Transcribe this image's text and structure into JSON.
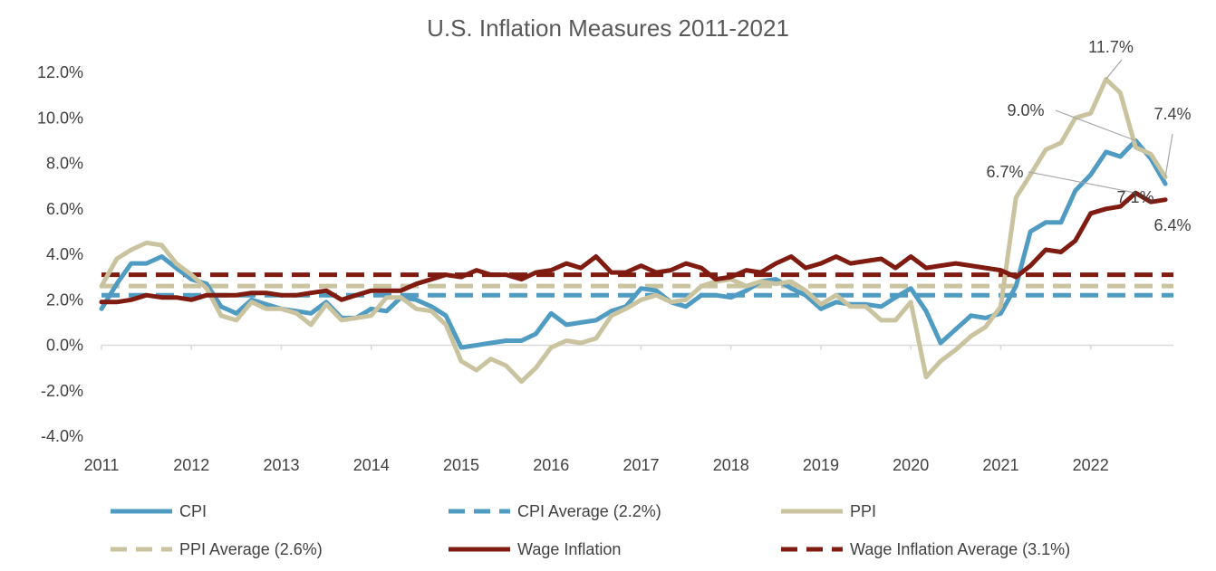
{
  "chart_data": {
    "type": "line",
    "title": "U.S. Inflation Measures 2011-2021",
    "xlabel": "",
    "ylabel": "",
    "ylim": [
      -4.0,
      12.0
    ],
    "y_ticks": [
      "-4.0%",
      "-2.0%",
      "0.0%",
      "2.0%",
      "4.0%",
      "6.0%",
      "8.0%",
      "10.0%",
      "12.0%"
    ],
    "y_tick_values": [
      -4,
      -2,
      0,
      2,
      4,
      6,
      8,
      10,
      12
    ],
    "x_ticks": [
      "2011",
      "2012",
      "2013",
      "2014",
      "2015",
      "2016",
      "2017",
      "2018",
      "2019",
      "2020",
      "2021",
      "2022"
    ],
    "x_tick_values": [
      2011,
      2012,
      2013,
      2014,
      2015,
      2016,
      2017,
      2018,
      2019,
      2020,
      2021,
      2022
    ],
    "xlim": [
      2011,
      2022.92
    ],
    "grid": false,
    "legend_position": "bottom",
    "series": [
      {
        "name": "CPI",
        "color": "#4f9bc2",
        "dash": "solid",
        "x": [
          2011.0,
          2011.17,
          2011.33,
          2011.5,
          2011.67,
          2011.83,
          2012.0,
          2012.17,
          2012.33,
          2012.5,
          2012.67,
          2012.83,
          2013.0,
          2013.17,
          2013.33,
          2013.5,
          2013.67,
          2013.83,
          2014.0,
          2014.17,
          2014.33,
          2014.5,
          2014.67,
          2014.83,
          2015.0,
          2015.17,
          2015.33,
          2015.5,
          2015.67,
          2015.83,
          2016.0,
          2016.17,
          2016.33,
          2016.5,
          2016.67,
          2016.83,
          2017.0,
          2017.17,
          2017.33,
          2017.5,
          2017.67,
          2017.83,
          2018.0,
          2018.17,
          2018.33,
          2018.5,
          2018.67,
          2018.83,
          2019.0,
          2019.17,
          2019.33,
          2019.5,
          2019.67,
          2019.83,
          2020.0,
          2020.17,
          2020.33,
          2020.5,
          2020.67,
          2020.83,
          2021.0,
          2021.17,
          2021.33,
          2021.5,
          2021.67,
          2021.83,
          2022.0,
          2022.17,
          2022.33,
          2022.5,
          2022.67,
          2022.83
        ],
        "values": [
          1.6,
          2.7,
          3.6,
          3.6,
          3.9,
          3.4,
          2.9,
          2.7,
          1.7,
          1.4,
          2.0,
          1.8,
          1.6,
          1.5,
          1.4,
          1.9,
          1.2,
          1.2,
          1.6,
          1.5,
          2.1,
          2.0,
          1.7,
          1.3,
          -0.1,
          0.0,
          0.1,
          0.2,
          0.2,
          0.5,
          1.4,
          0.9,
          1.0,
          1.1,
          1.5,
          1.7,
          2.5,
          2.4,
          1.9,
          1.7,
          2.2,
          2.2,
          2.1,
          2.4,
          2.8,
          2.9,
          2.5,
          2.2,
          1.6,
          1.9,
          1.8,
          1.8,
          1.7,
          2.1,
          2.5,
          1.5,
          0.1,
          0.7,
          1.3,
          1.2,
          1.4,
          2.6,
          5.0,
          5.4,
          5.4,
          6.8,
          7.5,
          8.5,
          8.3,
          9.0,
          8.2,
          7.1
        ]
      },
      {
        "name": "CPI Average (2.2%)",
        "color": "#4f9bc2",
        "dash": "dashed",
        "constant": 2.2
      },
      {
        "name": "PPI",
        "color": "#c9c39f",
        "dash": "solid",
        "x": [
          2011.0,
          2011.17,
          2011.33,
          2011.5,
          2011.67,
          2011.83,
          2012.0,
          2012.17,
          2012.33,
          2012.5,
          2012.67,
          2012.83,
          2013.0,
          2013.17,
          2013.33,
          2013.5,
          2013.67,
          2013.83,
          2014.0,
          2014.17,
          2014.33,
          2014.5,
          2014.67,
          2014.83,
          2015.0,
          2015.17,
          2015.33,
          2015.5,
          2015.67,
          2015.83,
          2016.0,
          2016.17,
          2016.33,
          2016.5,
          2016.67,
          2016.83,
          2017.0,
          2017.17,
          2017.33,
          2017.5,
          2017.67,
          2017.83,
          2018.0,
          2018.17,
          2018.33,
          2018.5,
          2018.67,
          2018.83,
          2019.0,
          2019.17,
          2019.33,
          2019.5,
          2019.67,
          2019.83,
          2020.0,
          2020.17,
          2020.33,
          2020.5,
          2020.67,
          2020.83,
          2021.0,
          2021.17,
          2021.33,
          2021.5,
          2021.67,
          2021.83,
          2022.0,
          2022.17,
          2022.33,
          2022.5,
          2022.67,
          2022.83
        ],
        "values": [
          2.6,
          3.8,
          4.2,
          4.5,
          4.4,
          3.6,
          3.1,
          2.5,
          1.3,
          1.1,
          1.9,
          1.6,
          1.6,
          1.4,
          0.9,
          1.8,
          1.1,
          1.2,
          1.3,
          2.1,
          2.1,
          1.6,
          1.5,
          0.9,
          -0.7,
          -1.1,
          -0.6,
          -0.9,
          -1.6,
          -1.0,
          -0.1,
          0.2,
          0.1,
          0.3,
          1.3,
          1.6,
          2.0,
          2.2,
          1.9,
          2.0,
          2.6,
          2.8,
          2.9,
          2.6,
          2.8,
          2.7,
          2.8,
          2.4,
          1.8,
          2.2,
          1.7,
          1.7,
          1.1,
          1.1,
          1.9,
          -1.4,
          -0.7,
          -0.2,
          0.4,
          0.8,
          1.7,
          6.5,
          7.5,
          8.6,
          8.9,
          10.0,
          10.2,
          11.7,
          11.1,
          8.7,
          8.4,
          7.4
        ]
      },
      {
        "name": "PPI Average (2.6%)",
        "color": "#c9c39f",
        "dash": "dashed",
        "constant": 2.6
      },
      {
        "name": "Wage Inflation",
        "color": "#7f1b10",
        "dash": "solid",
        "x": [
          2011.0,
          2011.17,
          2011.33,
          2011.5,
          2011.67,
          2011.83,
          2012.0,
          2012.17,
          2012.33,
          2012.5,
          2012.67,
          2012.83,
          2013.0,
          2013.17,
          2013.33,
          2013.5,
          2013.67,
          2013.83,
          2014.0,
          2014.17,
          2014.33,
          2014.5,
          2014.67,
          2014.83,
          2015.0,
          2015.17,
          2015.33,
          2015.5,
          2015.67,
          2015.83,
          2016.0,
          2016.17,
          2016.33,
          2016.5,
          2016.67,
          2016.83,
          2017.0,
          2017.17,
          2017.33,
          2017.5,
          2017.67,
          2017.83,
          2018.0,
          2018.17,
          2018.33,
          2018.5,
          2018.67,
          2018.83,
          2019.0,
          2019.17,
          2019.33,
          2019.5,
          2019.67,
          2019.83,
          2020.0,
          2020.17,
          2020.33,
          2020.5,
          2020.67,
          2020.83,
          2021.0,
          2021.17,
          2021.33,
          2021.5,
          2021.67,
          2021.83,
          2022.0,
          2022.17,
          2022.33,
          2022.5,
          2022.67,
          2022.83
        ],
        "values": [
          1.9,
          1.9,
          2.0,
          2.2,
          2.1,
          2.1,
          2.0,
          2.2,
          2.2,
          2.2,
          2.3,
          2.3,
          2.2,
          2.2,
          2.3,
          2.4,
          2.0,
          2.2,
          2.4,
          2.4,
          2.4,
          2.7,
          2.9,
          3.1,
          3.0,
          3.3,
          3.1,
          3.1,
          2.9,
          3.2,
          3.3,
          3.6,
          3.4,
          3.9,
          3.2,
          3.2,
          3.5,
          3.2,
          3.3,
          3.6,
          3.4,
          2.9,
          3.0,
          3.3,
          3.2,
          3.6,
          3.9,
          3.4,
          3.6,
          3.9,
          3.6,
          3.7,
          3.8,
          3.4,
          3.9,
          3.4,
          3.5,
          3.6,
          3.5,
          3.4,
          3.3,
          3.0,
          3.5,
          4.2,
          4.1,
          4.6,
          5.8,
          6.0,
          6.1,
          6.7,
          6.3,
          6.4
        ]
      },
      {
        "name": "Wage Inflation Average (3.1%)",
        "color": "#7f1b10",
        "dash": "dashed",
        "constant": 3.1
      }
    ],
    "annotations": [
      {
        "text": "11.7%",
        "x": 2022.17,
        "y": 11.7
      },
      {
        "text": "9.0%",
        "x": 2022.5,
        "y": 9.0
      },
      {
        "text": "7.4%",
        "x": 2022.83,
        "y": 7.4
      },
      {
        "text": "6.7%",
        "x": 2022.5,
        "y": 6.7
      },
      {
        "text": "7.1%",
        "x": 2022.83,
        "y": 7.1
      },
      {
        "text": "6.4%",
        "x": 2022.83,
        "y": 6.4
      }
    ]
  }
}
